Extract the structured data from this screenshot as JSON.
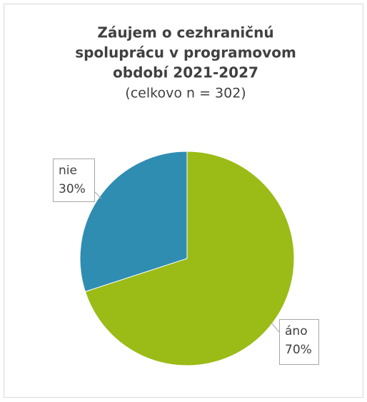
{
  "chart_data": {
    "type": "pie",
    "title": [
      "Záujem o cezhraničnú",
      "spoluprácu v programovom",
      "období 2021-2027"
    ],
    "subtitle": "(celkovo n = 302)",
    "categories": [
      "áno",
      "nie"
    ],
    "values": [
      70,
      30
    ],
    "value_labels": [
      "70%",
      "30%"
    ],
    "colors": [
      "#9bbb17",
      "#2f8db2"
    ]
  }
}
